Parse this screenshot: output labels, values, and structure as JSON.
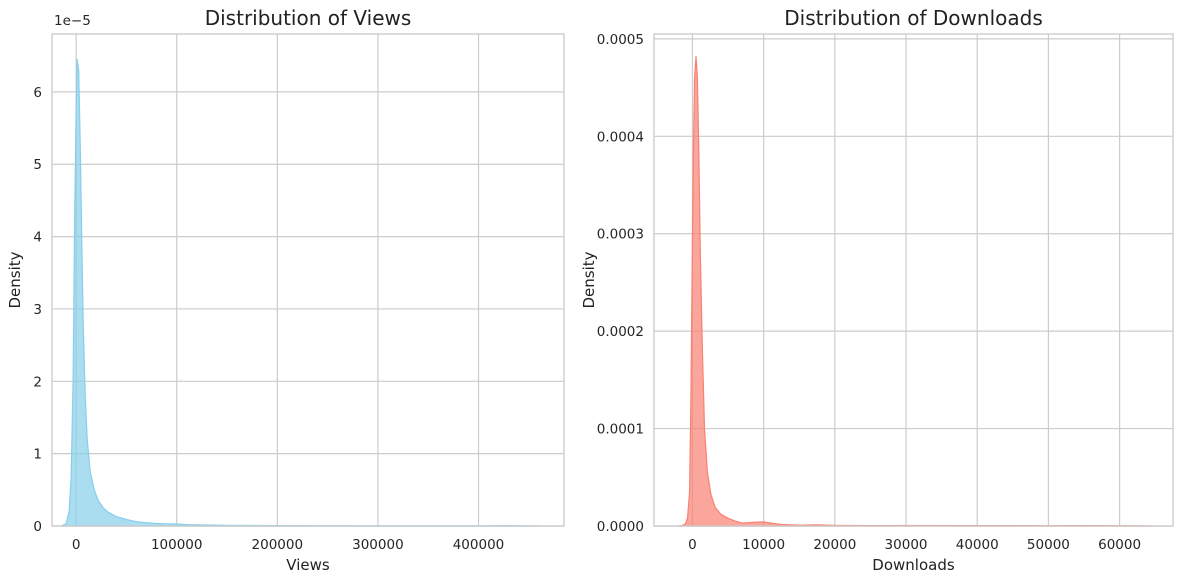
{
  "chart_data": [
    {
      "type": "area",
      "title": "Distribution of Views",
      "xlabel": "Views",
      "ylabel": "Density",
      "offset_label": "1e−5",
      "x_ticks": [
        0,
        100000,
        200000,
        300000,
        400000
      ],
      "x_tick_labels": [
        "0",
        "100000",
        "200000",
        "300000",
        "400000"
      ],
      "y_ticks": [
        0,
        1e-05,
        2e-05,
        3e-05,
        4e-05,
        5e-05,
        6e-05
      ],
      "y_tick_labels": [
        "0",
        "1",
        "2",
        "3",
        "4",
        "5",
        "6"
      ],
      "xlim": [
        -24000,
        485000
      ],
      "ylim": [
        0,
        6.8e-05
      ],
      "grid": true,
      "color": "#87ceeb",
      "x": [
        -15000,
        -10000,
        -7000,
        -5000,
        -3000,
        -1500,
        0,
        1000,
        2500,
        4000,
        5500,
        7000,
        9000,
        11000,
        14000,
        18000,
        22000,
        27000,
        32000,
        40000,
        50000,
        60000,
        70000,
        80000,
        90000,
        100000,
        110000,
        120000,
        135000,
        150000,
        170000,
        200000,
        250000,
        300000,
        350000,
        400000,
        430000,
        445000,
        460000
      ],
      "y": [
        0,
        3e-07,
        2e-06,
        6.5e-06,
        2e-05,
        4.2e-05,
        5.7e-05,
        6.45e-05,
        6.3e-05,
        5.3e-05,
        4e-05,
        2.8e-05,
        1.8e-05,
        1.2e-05,
        7.5e-06,
        5e-06,
        3.5e-06,
        2.5e-06,
        1.9e-06,
        1.3e-06,
        9e-07,
        6e-07,
        4.5e-07,
        3.5e-07,
        3e-07,
        2.8e-07,
        2e-07,
        1.5e-07,
        1.2e-07,
        1e-07,
        7e-08,
        5e-08,
        4e-08,
        3e-08,
        2e-08,
        2e-08,
        5e-08,
        3e-08,
        0
      ]
    },
    {
      "type": "area",
      "title": "Distribution of Downloads",
      "xlabel": "Downloads",
      "ylabel": "Density",
      "x_ticks": [
        0,
        10000,
        20000,
        30000,
        40000,
        50000,
        60000
      ],
      "x_tick_labels": [
        "0",
        "10000",
        "20000",
        "30000",
        "40000",
        "50000",
        "60000"
      ],
      "y_ticks": [
        0,
        0.0001,
        0.0002,
        0.0003,
        0.0004,
        0.0005
      ],
      "y_tick_labels": [
        "0.0000",
        "0.0001",
        "0.0002",
        "0.0003",
        "0.0004",
        "0.0005"
      ],
      "xlim": [
        -5400,
        67500
      ],
      "ylim": [
        0,
        0.000505
      ],
      "grid": true,
      "color": "#fa8072",
      "x": [
        -2000,
        -1500,
        -1000,
        -700,
        -400,
        -200,
        0,
        150,
        300,
        500,
        700,
        900,
        1100,
        1400,
        1700,
        2100,
        2600,
        3200,
        4000,
        5000,
        6000,
        7000,
        8000,
        9000,
        10000,
        11000,
        12500,
        15000,
        17500,
        20000,
        25000,
        30000,
        40000,
        50000,
        55000,
        60000,
        63000,
        64500
      ],
      "y": [
        0,
        3e-07,
        2e-06,
        8e-06,
        3.5e-05,
        0.00014,
        0.00029,
        0.00039,
        0.00046,
        0.000482,
        0.00046,
        0.00038,
        0.00028,
        0.00018,
        0.0001,
        5.5e-05,
        3.2e-05,
        1.9e-05,
        1.2e-05,
        8e-06,
        5e-06,
        3e-06,
        3.5e-06,
        4e-06,
        4.2e-06,
        3e-06,
        1.5e-06,
        8e-07,
        1.2e-06,
        6e-07,
        4e-07,
        5e-07,
        4e-07,
        3e-07,
        4e-07,
        3e-07,
        2e-07,
        0
      ]
    }
  ]
}
